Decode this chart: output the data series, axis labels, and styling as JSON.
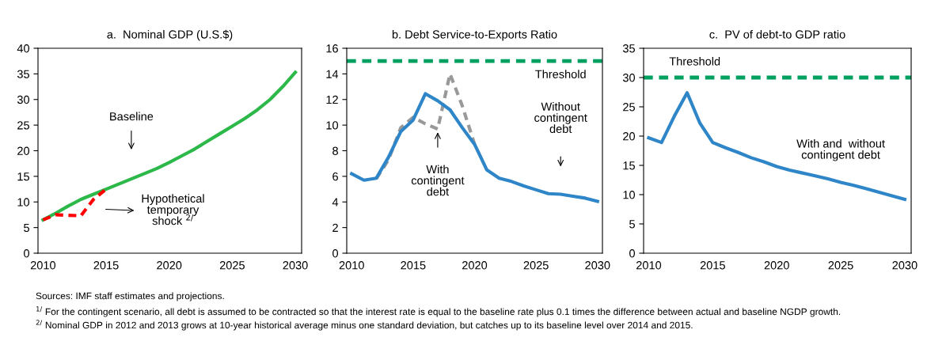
{
  "chart_data": [
    {
      "type": "line",
      "title": "a.  Nominal GDP (U.S.$)",
      "x": [
        2010,
        2011,
        2012,
        2013,
        2014,
        2015,
        2016,
        2017,
        2018,
        2019,
        2020,
        2021,
        2022,
        2023,
        2024,
        2025,
        2026,
        2027,
        2028,
        2029,
        2030
      ],
      "series": [
        {
          "color": "#2db84a",
          "values": [
            6.5,
            7.8,
            9.2,
            10.5,
            11.5,
            12.5,
            13.5,
            14.5,
            15.5,
            16.5,
            17.7,
            19.0,
            20.3,
            21.8,
            23.3,
            24.8,
            26.3,
            28.0,
            30.0,
            32.5,
            35.3
          ]
        },
        {
          "color": "#ff0000",
          "line_style": "dashed",
          "x": [
            2010,
            2011,
            2012,
            2013,
            2014,
            2015
          ],
          "values": [
            6.5,
            7.5,
            7.4,
            7.3,
            10.5,
            12.5
          ]
        }
      ],
      "xlim": [
        2009.6,
        2030.5
      ],
      "xticks": [
        2010,
        2015,
        2020,
        2025,
        2030
      ],
      "ylim": [
        0,
        40
      ],
      "yticks": [
        0,
        5,
        10,
        15,
        20,
        25,
        30,
        35,
        40
      ],
      "grid": false,
      "legend": false,
      "annotations": [
        "Baseline",
        "Hypothetical\ntemporary\nshock $^{2/}$",
        "Sources: IMF staff estimates and projections.",
        "$^{1/}$ For the contingent scenario, all debt is assumed to be contracted so that the interest rate is equal to the baseline rate plus 0.1 times the difference between actual and baseline NGDP growth.",
        "$^{2/}$ Nominal GDP in 2012 and 2013 grows at 10-year historical average minus one standard deviation, but catches up to its baseline level over 2014 and 2015."
      ]
    },
    {
      "type": "line",
      "title": "b. Debt Service-to-Exports Ratio",
      "x": [
        2010,
        2011,
        2012,
        2013,
        2014,
        2015,
        2016,
        2017,
        2018,
        2019,
        2020,
        2021,
        2022,
        2023,
        2024,
        2025,
        2026,
        2027,
        2028,
        2029,
        2030
      ],
      "series": [
        {
          "color": "#999999",
          "line_style": "dashed",
          "x": [
            2012,
            2013,
            2014,
            2015,
            2016,
            2017,
            2018,
            2019,
            2020
          ],
          "values": [
            5.8,
            7.3,
            9.8,
            10.6,
            10.1,
            9.7,
            14.0,
            11.5,
            8.5
          ]
        },
        {
          "color": "#2e86c8",
          "values": [
            6.2,
            5.7,
            5.85,
            7.5,
            9.5,
            10.4,
            12.45,
            11.9,
            11.2,
            9.8,
            8.5,
            6.5,
            5.85,
            5.6,
            5.25,
            4.95,
            4.65,
            4.6,
            4.45,
            4.3,
            4.05
          ]
        }
      ],
      "ref_lines": [
        {
          "axis": "y",
          "value": 15,
          "label": "Threshold",
          "color": "#00a060",
          "line_style": "dashed"
        }
      ],
      "xlim": [
        2009.6,
        2030.4
      ],
      "xticks": [
        2010,
        2015,
        2020,
        2025,
        2030
      ],
      "ylim": [
        0,
        16
      ],
      "yticks": [
        0,
        2,
        4,
        6,
        8,
        10,
        12,
        14,
        16
      ],
      "grid": false,
      "legend": false,
      "annotations": [
        "With\ncontingent\ndebt",
        "Without\ncontingent\ndebt"
      ]
    },
    {
      "type": "line",
      "title": "c.  PV of debt-to GDP ratio",
      "x": [
        2010,
        2011,
        2012,
        2013,
        2014,
        2015,
        2016,
        2017,
        2018,
        2019,
        2020,
        2021,
        2022,
        2023,
        2024,
        2025,
        2026,
        2027,
        2028,
        2029,
        2030
      ],
      "series": [
        {
          "color": "#2e86c8",
          "values": [
            19.7,
            18.9,
            23.4,
            27.4,
            22.2,
            18.9,
            18.0,
            17.2,
            16.3,
            15.6,
            14.8,
            14.2,
            13.7,
            13.2,
            12.7,
            12.1,
            11.6,
            11.0,
            10.4,
            9.8,
            9.2
          ]
        }
      ],
      "ref_lines": [
        {
          "axis": "y",
          "value": 30,
          "label": "Threshold",
          "color": "#00a060",
          "line_style": "dashed"
        }
      ],
      "xlim": [
        2009.6,
        2030.5
      ],
      "xticks": [
        2010,
        2015,
        2020,
        2025,
        2030
      ],
      "ylim": [
        0,
        35
      ],
      "yticks": [
        0,
        5,
        10,
        15,
        20,
        25,
        30,
        35
      ],
      "grid": false,
      "legend": false,
      "annotations": [
        "With and  without\ncontingent debt"
      ]
    }
  ]
}
